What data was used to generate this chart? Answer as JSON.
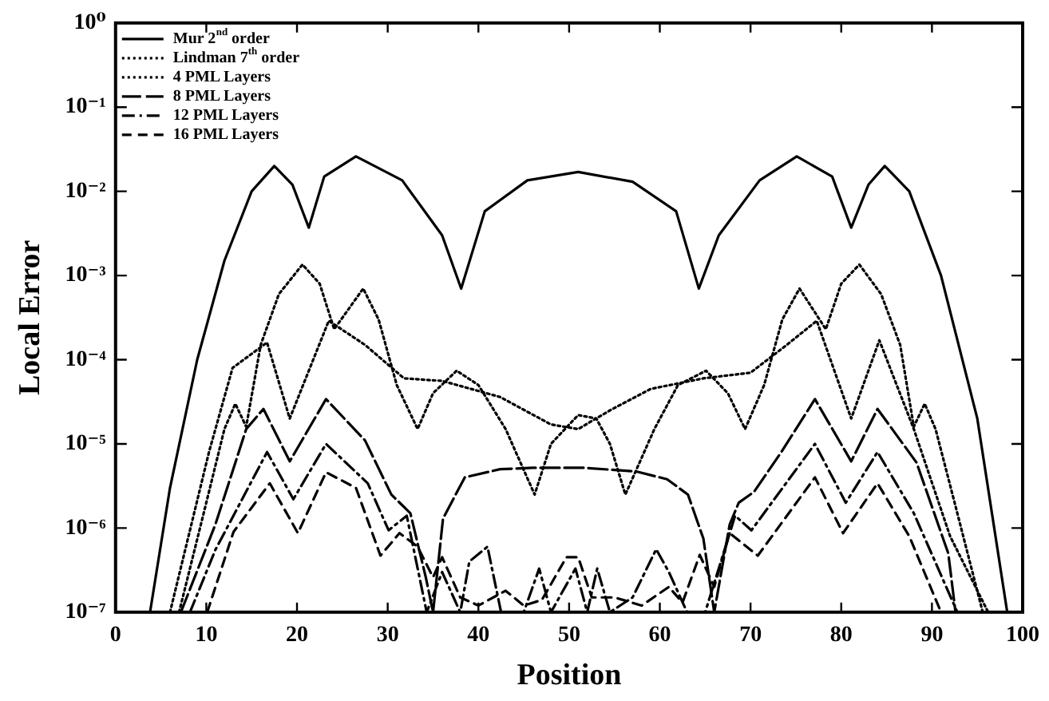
{
  "chart_data": {
    "type": "line",
    "xlabel": "Position",
    "ylabel": "Local Error",
    "log": "y",
    "grid": false,
    "legend": "top left",
    "marker": "none",
    "xlim": [
      0,
      100
    ],
    "xticks": [
      0,
      10,
      20,
      30,
      40,
      50,
      60,
      70,
      80,
      90,
      100
    ],
    "ylim": [
      1e-07,
      1
    ],
    "yticks": [
      {
        "value": 1e-07,
        "label": "10⁻⁷"
      },
      {
        "value": 1e-06,
        "label": "10⁻⁶"
      },
      {
        "value": 1e-05,
        "label": "10⁻⁵"
      },
      {
        "value": 0.0001,
        "label": "10⁻⁴"
      },
      {
        "value": 0.001,
        "label": "10⁻³"
      },
      {
        "value": 0.01,
        "label": "10⁻²"
      },
      {
        "value": 0.1,
        "label": "10⁻¹"
      },
      {
        "value": 1,
        "label": "10⁰"
      }
    ],
    "series": [
      {
        "name": "Mur 2$^{nd}$ order",
        "color": "#000000",
        "line_style": "solid",
        "x": [
          3.8,
          6,
          9,
          12,
          15,
          17.5,
          19.5,
          21.3,
          23,
          26.5,
          31.6,
          36,
          38.1,
          40.7,
          45.4,
          51,
          57,
          61.8,
          64.3,
          66.5,
          71,
          75.1,
          79,
          81.1,
          83,
          84.8,
          87.5,
          91,
          95,
          98.3
        ],
        "values": [
          1e-07,
          3e-06,
          0.0001,
          0.0015,
          0.01,
          0.02,
          0.012,
          0.0037,
          0.015,
          0.026,
          0.0135,
          0.003,
          0.0007,
          0.0058,
          0.0135,
          0.017,
          0.013,
          0.0058,
          0.0007,
          0.003,
          0.0135,
          0.026,
          0.015,
          0.0037,
          0.012,
          0.02,
          0.01,
          0.001,
          2e-05,
          1e-07
        ]
      },
      {
        "name": "Lindman 7$^{th}$ order",
        "color": "#000000",
        "line_style": "dotted",
        "x": [
          7,
          10,
          12,
          13.2,
          14.4,
          16,
          18,
          20.6,
          22.5,
          24.1,
          27.3,
          29,
          31,
          33.3,
          35,
          37.6,
          40,
          43,
          46.2,
          48,
          51,
          53,
          54.5,
          56.2,
          59.4,
          62,
          65.1,
          67.5,
          69.4,
          71.5,
          73.5,
          75.4,
          78.3,
          80,
          82,
          84.4,
          86.5,
          88,
          89.2,
          90.4,
          92.5,
          95.6
        ],
        "values": [
          1e-07,
          2e-06,
          1.5e-05,
          3e-05,
          1.6e-05,
          0.00015,
          0.0006,
          0.00135,
          0.0008,
          0.00023,
          0.0007,
          0.0003,
          5e-05,
          1.5e-05,
          4e-05,
          7.4e-05,
          5e-05,
          1.5e-05,
          2.5e-06,
          1e-05,
          2.2e-05,
          2e-05,
          1e-05,
          2.5e-06,
          1.5e-05,
          5e-05,
          7.4e-05,
          4e-05,
          1.5e-05,
          5e-05,
          0.0003,
          0.0007,
          0.00023,
          0.0008,
          0.00135,
          0.0006,
          0.00015,
          1.6e-05,
          3e-05,
          1.5e-05,
          2e-06,
          1e-07
        ]
      },
      {
        "name": "4 PML Layers",
        "color": "#000000",
        "line_style": "dotted",
        "x": [
          6,
          10.3,
          12.9,
          16.7,
          19.2,
          23.5,
          27.5,
          31.8,
          36,
          42.4,
          48,
          51,
          54.5,
          59,
          64.8,
          70,
          74,
          77.3,
          81.1,
          84.2,
          88,
          92,
          96.2
        ],
        "values": [
          1e-07,
          8e-06,
          8e-05,
          0.00016,
          2e-05,
          0.00029,
          0.00015,
          6e-05,
          5.6e-05,
          3.6e-05,
          1.7e-05,
          1.5e-05,
          2.5e-05,
          4.5e-05,
          6e-05,
          7e-05,
          0.00015,
          0.00029,
          2e-05,
          0.00017,
          1.5e-05,
          8e-07,
          1e-07
        ]
      },
      {
        "name": "8 PML Layers",
        "color": "#000000",
        "line_style": "longdash",
        "x": [
          7.2,
          11,
          14.4,
          16.3,
          19.2,
          23.2,
          27.5,
          30.4,
          32.5,
          34.2,
          35,
          36.1,
          38.5,
          42.4,
          46,
          51.5,
          57.4,
          60.8,
          63.1,
          64.8,
          66,
          67.7,
          68.7,
          70.4,
          73.4,
          77.1,
          81.1,
          84,
          88.3,
          91.8,
          92.6
        ],
        "values": [
          1e-07,
          1.1e-06,
          1.5e-05,
          2.6e-05,
          6.2e-06,
          3.4e-05,
          1.1e-05,
          2.5e-06,
          1.5e-06,
          2.6e-07,
          1e-07,
          1.3e-06,
          4e-06,
          5e-06,
          5.2e-06,
          5.2e-06,
          4.7e-06,
          3.8e-06,
          2.5e-06,
          7.5e-07,
          1e-07,
          1.1e-06,
          2e-06,
          2.7e-06,
          8e-06,
          3.4e-05,
          6.2e-06,
          2.6e-05,
          6e-06,
          5e-07,
          1e-07
        ]
      },
      {
        "name": "12 PML Layers",
        "color": "#000000",
        "line_style": "dashdot",
        "x": [
          8.2,
          11,
          16.7,
          19.6,
          23.2,
          27.8,
          30.1,
          32.1,
          34.3,
          36,
          38,
          39,
          41,
          42.5,
          45,
          46.7,
          48,
          50.7,
          52,
          53.1,
          54.5,
          57,
          59.6,
          61,
          63,
          65,
          68.3,
          70.1,
          77.1,
          80.5,
          84,
          88,
          92.8
        ],
        "values": [
          1e-07,
          5.5e-07,
          8e-06,
          2.2e-06,
          1e-05,
          3.4e-06,
          9.4e-07,
          1.4e-06,
          1e-07,
          3e-07,
          1e-07,
          4e-07,
          6e-07,
          1e-07,
          1e-07,
          3.3e-07,
          1e-07,
          3.3e-07,
          1e-07,
          3.3e-07,
          1e-07,
          1.5e-07,
          5.6e-07,
          3e-07,
          1e-07,
          1e-07,
          1.4e-06,
          9.4e-07,
          1e-05,
          2e-06,
          8e-06,
          1.5e-06,
          1e-07
        ]
      },
      {
        "name": "16 PML Layers",
        "color": "#000000",
        "line_style": "dashed",
        "x": [
          10.1,
          13,
          17,
          20.1,
          23.2,
          26.5,
          29.2,
          31.3,
          33.3,
          35,
          36,
          38,
          40,
          43,
          45,
          47,
          49.7,
          51,
          52.5,
          55,
          58,
          61,
          62.5,
          64.4,
          66,
          67.7,
          70.8,
          77.1,
          80.2,
          84,
          87.5,
          91
        ],
        "values": [
          1e-07,
          9e-07,
          3.4e-06,
          8.7e-07,
          4.6e-06,
          3e-06,
          4.7e-07,
          8.7e-07,
          6e-07,
          2.6e-07,
          4.5e-07,
          1.5e-07,
          1.2e-07,
          1.8e-07,
          1.2e-07,
          1.4e-07,
          4.5e-07,
          4.5e-07,
          1.5e-07,
          1.5e-07,
          1.2e-07,
          2e-07,
          1.3e-07,
          4.8e-07,
          2e-07,
          8.7e-07,
          4.7e-07,
          4e-06,
          8.7e-07,
          3.4e-06,
          8e-07,
          1e-07
        ]
      }
    ]
  }
}
